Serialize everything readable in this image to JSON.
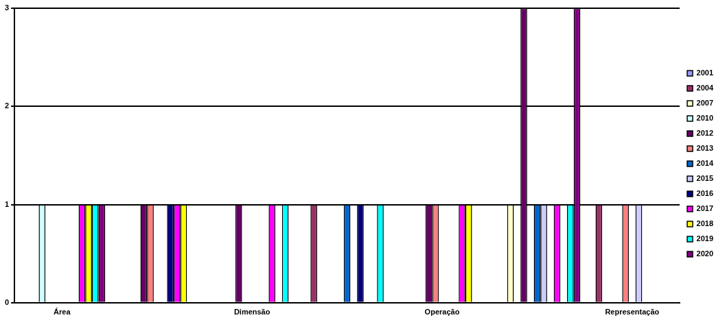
{
  "chart_data": {
    "type": "bar",
    "categories": [
      "Área",
      null,
      "Dimensão",
      null,
      "Operação",
      null,
      "Representação"
    ],
    "series": [
      {
        "name": "2001",
        "color": "#9999ff",
        "values": [
          null,
          null,
          null,
          null,
          null,
          null,
          null
        ]
      },
      {
        "name": "2004",
        "color": "#993366",
        "values": [
          null,
          null,
          null,
          1,
          null,
          null,
          1
        ]
      },
      {
        "name": "2007",
        "color": "#ffffcc",
        "values": [
          null,
          null,
          null,
          null,
          null,
          1,
          null
        ]
      },
      {
        "name": "2010",
        "color": "#ccffff",
        "values": [
          1,
          null,
          null,
          null,
          null,
          null,
          null
        ]
      },
      {
        "name": "2012",
        "color": "#660066",
        "values": [
          null,
          1,
          1,
          null,
          1,
          3,
          null
        ]
      },
      {
        "name": "2013",
        "color": "#ff8080",
        "values": [
          null,
          1,
          null,
          null,
          1,
          null,
          1
        ]
      },
      {
        "name": "2014",
        "color": "#0066cc",
        "values": [
          null,
          null,
          null,
          1,
          null,
          1,
          null
        ]
      },
      {
        "name": "2015",
        "color": "#ccccff",
        "values": [
          null,
          null,
          null,
          null,
          null,
          1,
          1
        ]
      },
      {
        "name": "2016",
        "color": "#000080",
        "values": [
          null,
          1,
          null,
          1,
          null,
          null,
          null
        ]
      },
      {
        "name": "2017",
        "color": "#ff00ff",
        "values": [
          1,
          1,
          1,
          null,
          1,
          1,
          null
        ]
      },
      {
        "name": "2018",
        "color": "#ffff00",
        "values": [
          1,
          1,
          null,
          null,
          1,
          null,
          null
        ]
      },
      {
        "name": "2019",
        "color": "#00ffff",
        "values": [
          1,
          null,
          1,
          1,
          null,
          1,
          null
        ]
      },
      {
        "name": "2020",
        "color": "#800080",
        "values": [
          1,
          null,
          null,
          null,
          null,
          3,
          null
        ]
      }
    ],
    "ylim": [
      0,
      3
    ],
    "yticks": [
      0,
      1,
      2,
      3
    ],
    "grid": "y",
    "legend": "right"
  }
}
